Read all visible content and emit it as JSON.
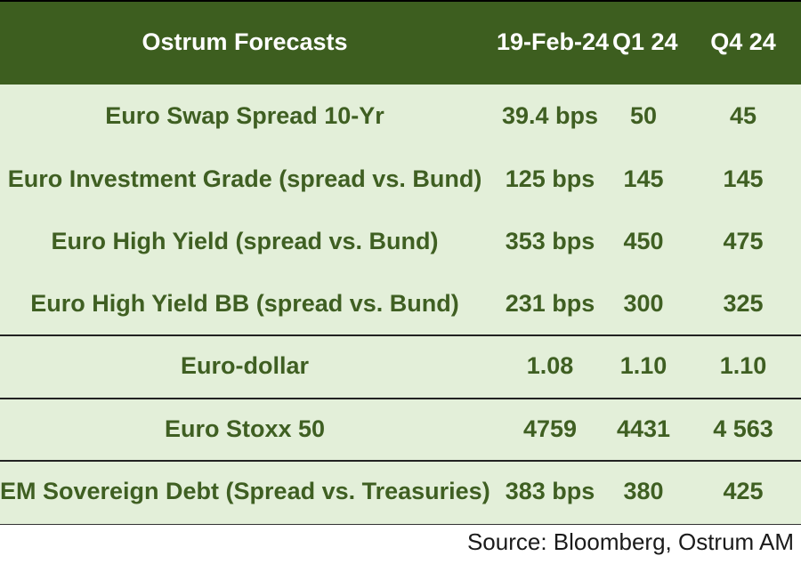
{
  "chart_data": {
    "type": "table",
    "title": "Ostrum Forecasts",
    "columns": [
      "19-Feb-24",
      "Q1 24",
      "Q4 24"
    ],
    "rows": [
      {
        "label": "Euro Swap Spread 10-Yr",
        "values": [
          "39.4 bps",
          "50",
          "45"
        ]
      },
      {
        "label": "Euro Investment Grade (spread vs. Bund)",
        "values": [
          "125 bps",
          "145",
          "145"
        ]
      },
      {
        "label": "Euro High Yield (spread vs. Bund)",
        "values": [
          "353 bps",
          "450",
          "475"
        ]
      },
      {
        "label": "Euro High Yield BB (spread vs. Bund)",
        "values": [
          "231 bps",
          "300",
          "325"
        ]
      },
      {
        "label": "Euro-dollar",
        "values": [
          "1.08",
          "1.10",
          "1.10"
        ]
      },
      {
        "label": "Euro Stoxx 50",
        "values": [
          "4759",
          "4431",
          "4 563"
        ]
      },
      {
        "label": "EM Sovereign Debt  (Spread vs. Treasuries)",
        "values": [
          "383 bps",
          "380",
          "425"
        ]
      }
    ],
    "source": "Source: Bloomberg, Ostrum AM"
  },
  "colors": {
    "header_bg": "#3d5e1f",
    "header_text": "#ffffff",
    "body_bg": "#e3efd9",
    "body_text": "#3f5f22"
  }
}
